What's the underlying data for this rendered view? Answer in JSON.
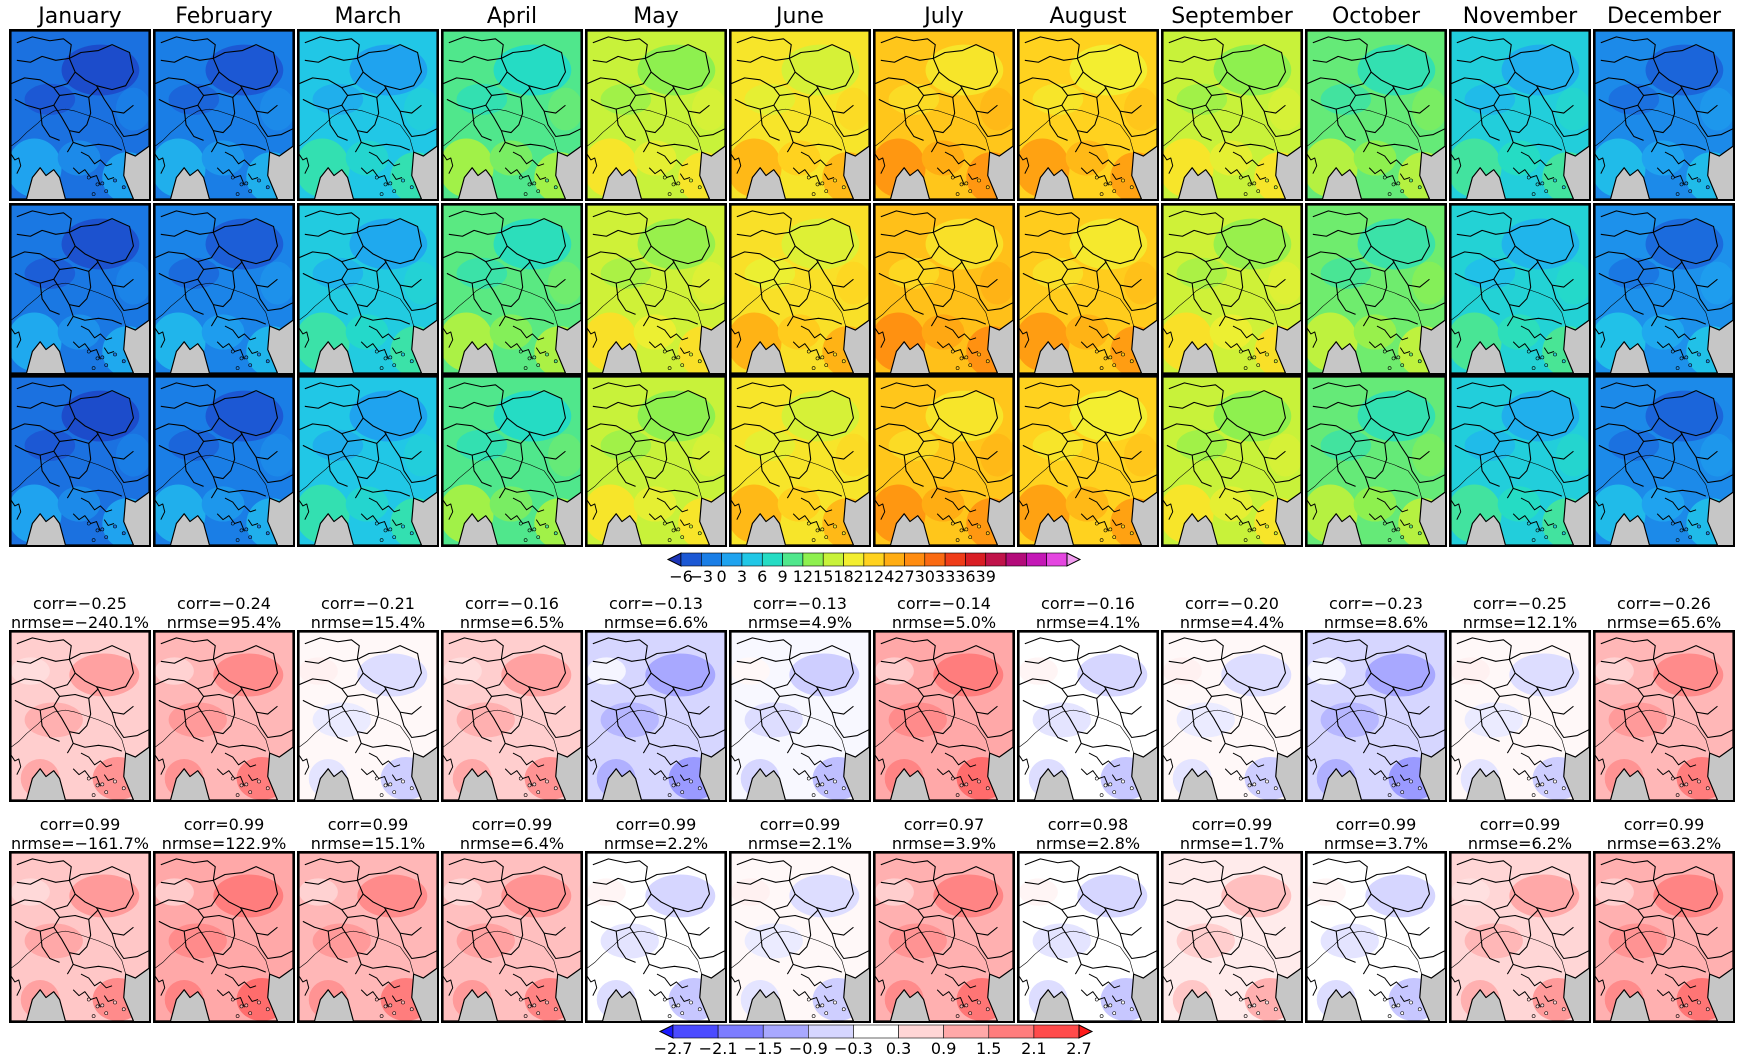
{
  "months": [
    "January",
    "February",
    "March",
    "April",
    "May",
    "June",
    "July",
    "August",
    "September",
    "October",
    "November",
    "December"
  ],
  "colors": {
    "land_mask": "#c6c6c6",
    "border_lines": "#000000"
  },
  "top_rows": {
    "count": 3,
    "monthly_mean_level": [
      -4,
      -3,
      3,
      9,
      15,
      19,
      22,
      21,
      15,
      10,
      4,
      -2
    ]
  },
  "colorbar_top": {
    "tick_labels": [
      "−6",
      "−3",
      "0",
      "3",
      "6",
      "9",
      "12",
      "15",
      "18",
      "21",
      "24",
      "27",
      "30",
      "33",
      "36",
      "39"
    ],
    "colors": [
      "#1d35b8",
      "#1c58d4",
      "#1a7ee6",
      "#1fa3ef",
      "#21c7e6",
      "#25dcc4",
      "#50e78c",
      "#8ef04f",
      "#c8f23a",
      "#f3ee30",
      "#ffd21f",
      "#ffad13",
      "#ff8c10",
      "#fa6a12",
      "#ef3c18",
      "#d91e24",
      "#c0134a",
      "#b30b7a",
      "#c418b6",
      "#e446e0",
      "#f19cf0"
    ]
  },
  "bias_rows": [
    {
      "stats": [
        {
          "corr": "corr=−0.25",
          "nrmse": "nrmse=−240.1%"
        },
        {
          "corr": "corr=−0.24",
          "nrmse": "nrmse=95.4%"
        },
        {
          "corr": "corr=−0.21",
          "nrmse": "nrmse=15.4%"
        },
        {
          "corr": "corr=−0.16",
          "nrmse": "nrmse=6.5%"
        },
        {
          "corr": "corr=−0.13",
          "nrmse": "nrmse=6.6%"
        },
        {
          "corr": "corr=−0.13",
          "nrmse": "nrmse=4.9%"
        },
        {
          "corr": "corr=−0.14",
          "nrmse": "nrmse=5.0%"
        },
        {
          "corr": "corr=−0.16",
          "nrmse": "nrmse=4.1%"
        },
        {
          "corr": "corr=−0.20",
          "nrmse": "nrmse=4.4%"
        },
        {
          "corr": "corr=−0.23",
          "nrmse": "nrmse=8.6%"
        },
        {
          "corr": "corr=−0.25",
          "nrmse": "nrmse=12.1%"
        },
        {
          "corr": "corr=−0.26",
          "nrmse": "nrmse=65.6%"
        }
      ],
      "bias_level": [
        0.4,
        0.7,
        -0.2,
        0.4,
        -0.9,
        -0.4,
        0.9,
        -0.3,
        -0.2,
        -0.9,
        -0.2,
        0.7
      ]
    },
    {
      "stats": [
        {
          "corr": "corr=0.99",
          "nrmse": "nrmse=−161.7%"
        },
        {
          "corr": "corr=0.99",
          "nrmse": "nrmse=122.9%"
        },
        {
          "corr": "corr=0.99",
          "nrmse": "nrmse=15.1%"
        },
        {
          "corr": "corr=0.99",
          "nrmse": "nrmse=6.4%"
        },
        {
          "corr": "corr=0.99",
          "nrmse": "nrmse=2.2%"
        },
        {
          "corr": "corr=0.99",
          "nrmse": "nrmse=2.1%"
        },
        {
          "corr": "corr=0.97",
          "nrmse": "nrmse=3.9%"
        },
        {
          "corr": "corr=0.98",
          "nrmse": "nrmse=2.8%"
        },
        {
          "corr": "corr=0.99",
          "nrmse": "nrmse=1.7%"
        },
        {
          "corr": "corr=0.99",
          "nrmse": "nrmse=3.7%"
        },
        {
          "corr": "corr=0.99",
          "nrmse": "nrmse=6.2%"
        },
        {
          "corr": "corr=0.99",
          "nrmse": "nrmse=63.2%"
        }
      ],
      "bias_level": [
        0.5,
        0.9,
        0.7,
        0.6,
        -0.3,
        -0.2,
        0.8,
        -0.3,
        0.0,
        -0.3,
        0.3,
        0.8
      ]
    }
  ],
  "colorbar_bias": {
    "tick_labels": [
      "−2.7",
      "−2.1",
      "−1.5",
      "−0.9",
      "−0.3",
      "0.3",
      "0.9",
      "1.5",
      "2.1",
      "2.7"
    ],
    "colors": [
      "#1a1aff",
      "#4b4bff",
      "#7d7dff",
      "#a8a8ff",
      "#d6d6ff",
      "#ffffff",
      "#ffd6d6",
      "#ffa8a8",
      "#ff7d7d",
      "#ff4b4b",
      "#ff1a1a"
    ]
  }
}
